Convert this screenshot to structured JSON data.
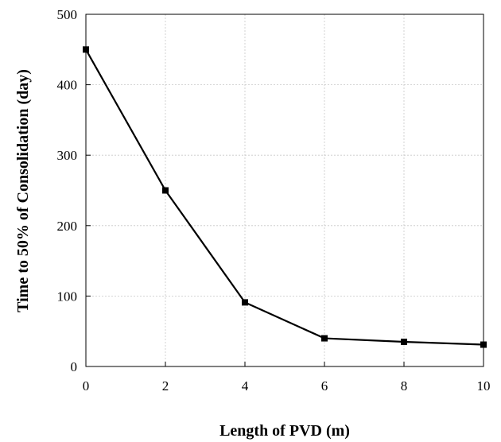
{
  "chart_data": {
    "type": "line",
    "title": "",
    "xlabel": "Length of PVD (m)",
    "ylabel": "Time to 50% of Consolidation (day)",
    "xlim": [
      0,
      10
    ],
    "ylim": [
      0,
      500
    ],
    "xticks": [
      0,
      2,
      4,
      6,
      8,
      10
    ],
    "yticks": [
      0,
      100,
      200,
      300,
      400,
      500
    ],
    "grid": true,
    "marker": "square",
    "line_color": "#000000",
    "series": [
      {
        "x": [
          0,
          2,
          4,
          6,
          8,
          10
        ],
        "values": [
          450,
          250,
          91,
          40,
          35,
          31
        ]
      }
    ]
  }
}
